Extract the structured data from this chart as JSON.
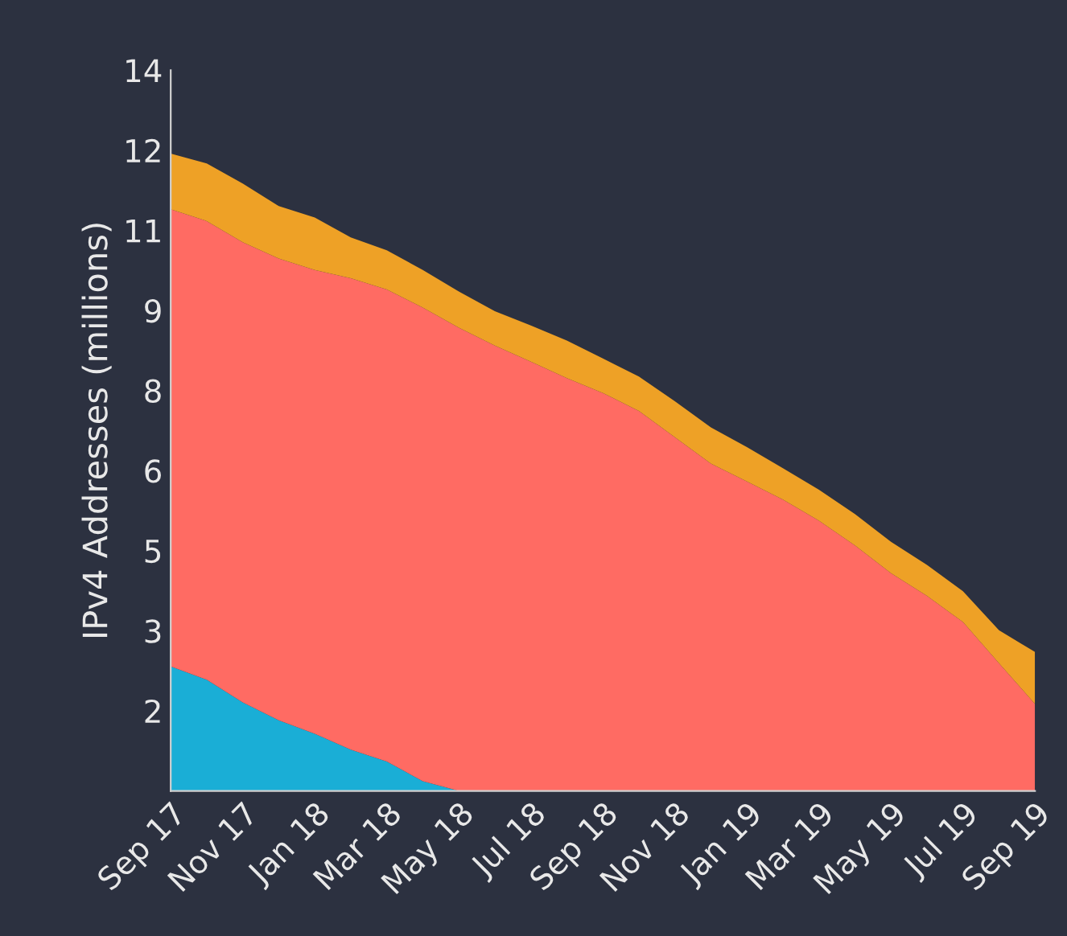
{
  "chart_data": {
    "type": "area",
    "stacked": true,
    "ylabel": "IPv4 Addresses (millions)",
    "categories": [
      "Sep 17",
      null,
      "Nov 17",
      null,
      "Jan 18",
      null,
      "Mar 18",
      null,
      "May 18",
      null,
      "Jul 18",
      null,
      "Sep 18",
      null,
      "Nov 18",
      null,
      "Jan 19",
      null,
      "Mar 19",
      null,
      "May 19",
      null,
      "Jul 19",
      null,
      "Sep 19"
    ],
    "series": [
      {
        "color": "#1aaed6",
        "values": [
          2.42,
          2.16,
          1.72,
          1.37,
          1.11,
          0.8,
          0.57,
          0.19,
          0,
          0,
          0,
          0,
          0,
          0,
          0,
          0,
          0,
          0,
          0,
          0,
          0,
          0,
          0,
          0,
          0
        ]
      },
      {
        "color": "#ff6b63",
        "values": [
          8.88,
          8.91,
          8.94,
          8.97,
          9.01,
          9.16,
          9.17,
          9.2,
          9.0,
          8.65,
          8.34,
          8.02,
          7.73,
          7.38,
          6.87,
          6.36,
          6.01,
          5.66,
          5.25,
          4.77,
          4.23,
          3.79,
          3.28,
          2.48,
          1.69
        ]
      },
      {
        "color": "#eea126",
        "values": [
          1.08,
          1.12,
          1.14,
          1.02,
          1.02,
          0.79,
          0.76,
          0.73,
          0.7,
          0.67,
          0.7,
          0.73,
          0.67,
          0.67,
          0.7,
          0.7,
          0.67,
          0.61,
          0.6,
          0.61,
          0.61,
          0.6,
          0.6,
          0.64,
          1.01
        ]
      }
    ],
    "ylim": [
      0,
      14
    ],
    "yticks": [
      {
        "value": 1.556,
        "label": "2"
      },
      {
        "value": 3.111,
        "label": "3"
      },
      {
        "value": 4.667,
        "label": "5"
      },
      {
        "value": 6.222,
        "label": "6"
      },
      {
        "value": 7.778,
        "label": "8"
      },
      {
        "value": 9.333,
        "label": "9"
      },
      {
        "value": 10.889,
        "label": "11"
      },
      {
        "value": 12.444,
        "label": "12"
      },
      14
    ],
    "grid": false,
    "legend": false
  }
}
